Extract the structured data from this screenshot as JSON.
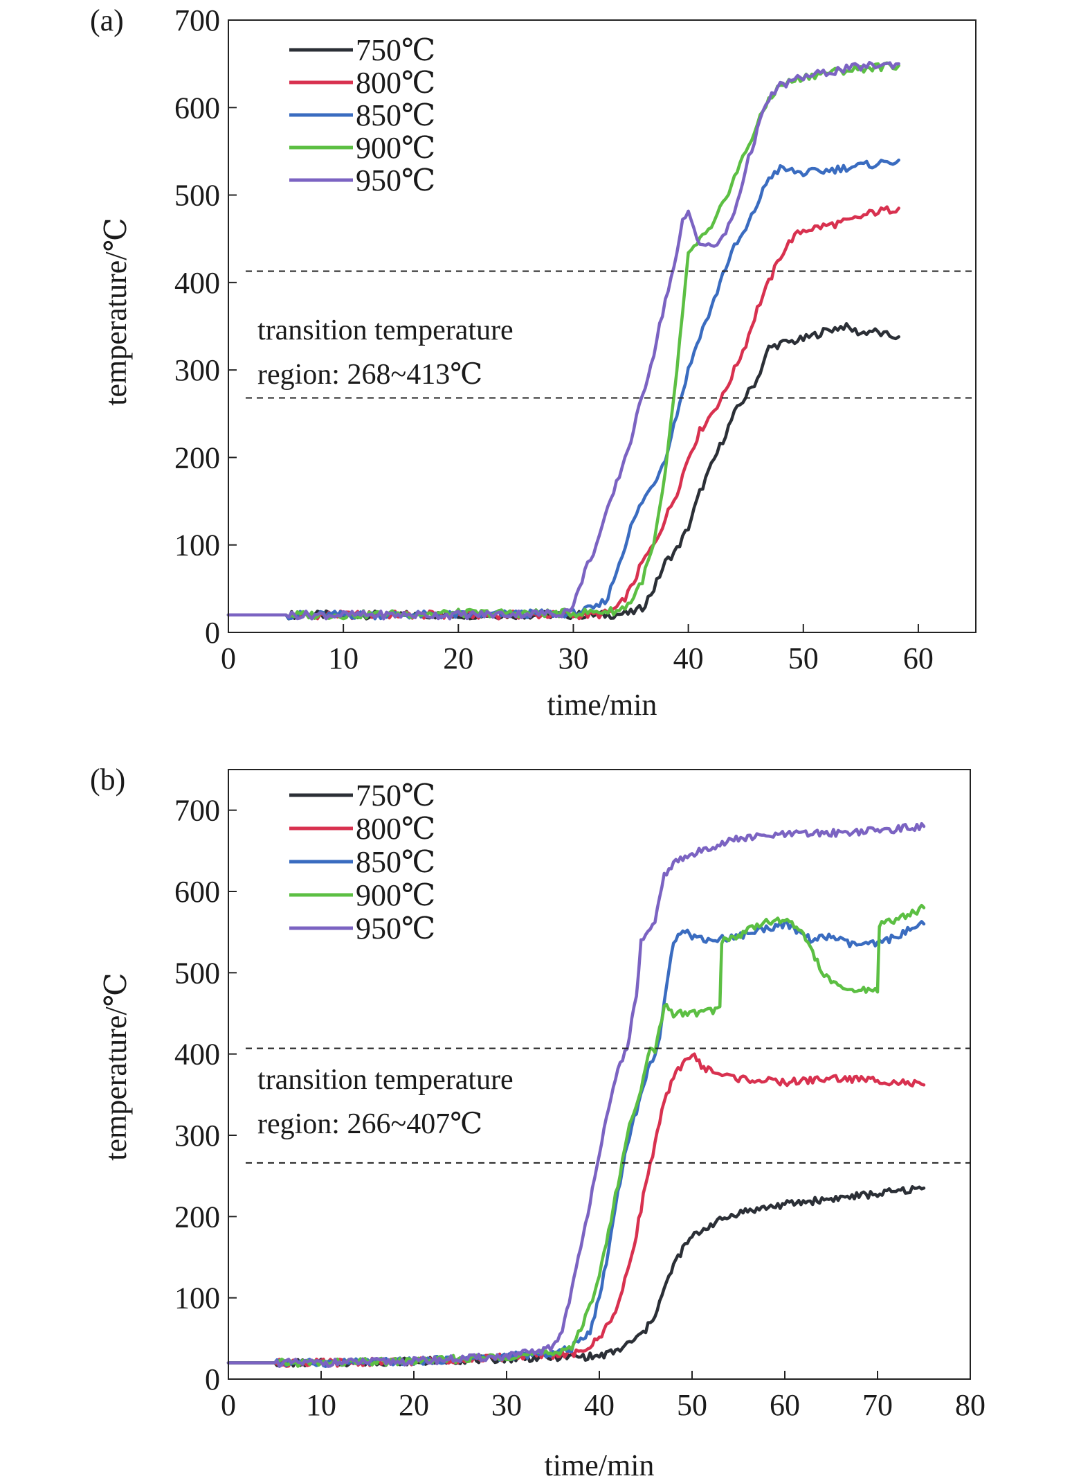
{
  "chart_data": [
    {
      "type": "line",
      "panel_label": "(a)",
      "xlabel": "time/min",
      "ylabel": "temperature/℃",
      "xlim": [
        0,
        65
      ],
      "ylim": [
        0,
        700
      ],
      "xticks": [
        0,
        10,
        20,
        30,
        40,
        50,
        60
      ],
      "yticks": [
        0,
        100,
        200,
        300,
        400,
        500,
        600,
        700
      ],
      "legend_position": "top-left",
      "reference_lines": [
        413,
        268
      ],
      "annotation": [
        "transition temperature",
        "region: 268~413℃"
      ],
      "series": [
        {
          "name": "750℃",
          "color": "#2b2f36",
          "x": [
            0,
            10,
            20,
            30,
            33,
            35,
            36,
            37,
            38,
            39,
            40,
            41,
            42,
            43,
            44,
            45,
            46,
            47,
            48,
            50,
            52,
            53.5,
            55,
            56,
            57,
            58.3
          ],
          "y": [
            20,
            20,
            20,
            20,
            20,
            22,
            28,
            50,
            80,
            95,
            120,
            160,
            190,
            220,
            250,
            270,
            290,
            325,
            330,
            335,
            345,
            350,
            342,
            345,
            340,
            338
          ]
        },
        {
          "name": "800℃",
          "color": "#d8314f",
          "x": [
            0,
            10,
            20,
            30,
            32,
            33,
            34,
            35,
            36,
            37,
            38,
            39,
            40,
            41,
            42,
            43,
            44,
            45,
            46,
            47,
            48,
            49,
            50,
            52,
            54,
            56,
            58.3
          ],
          "y": [
            20,
            20,
            20,
            20,
            20,
            22,
            30,
            50,
            80,
            100,
            130,
            160,
            200,
            230,
            250,
            270,
            300,
            330,
            370,
            400,
            430,
            450,
            460,
            465,
            470,
            480,
            485
          ]
        },
        {
          "name": "850℃",
          "color": "#3a6cc0",
          "x": [
            0,
            10,
            20,
            30,
            32,
            33,
            34,
            35,
            36,
            37,
            38,
            39,
            40,
            41,
            42,
            43,
            44,
            45,
            46,
            47,
            48,
            50,
            52,
            54,
            56,
            58.3
          ],
          "y": [
            20,
            20,
            20,
            22,
            28,
            40,
            80,
            120,
            150,
            170,
            200,
            250,
            300,
            340,
            370,
            410,
            440,
            460,
            490,
            520,
            530,
            525,
            528,
            532,
            535,
            540
          ]
        },
        {
          "name": "900℃",
          "color": "#5cbf43",
          "x": [
            0,
            10,
            20,
            30,
            34,
            35,
            36,
            37,
            38,
            39,
            40,
            41,
            42,
            43,
            44,
            45,
            46,
            47,
            48,
            50,
            52,
            54,
            56,
            58.3
          ],
          "y": [
            20,
            20,
            22,
            22,
            25,
            35,
            60,
            100,
            180,
            300,
            430,
            450,
            460,
            490,
            520,
            550,
            580,
            610,
            625,
            635,
            640,
            643,
            646,
            648
          ]
        },
        {
          "name": "950℃",
          "color": "#7b63c2",
          "x": [
            0,
            10,
            20,
            29,
            30,
            31,
            32,
            33,
            34,
            35,
            36,
            37,
            38,
            39,
            39.5,
            40,
            41,
            42,
            43,
            44,
            45,
            46,
            47,
            48,
            50,
            52,
            54,
            56,
            58.3
          ],
          "y": [
            20,
            20,
            20,
            22,
            30,
            70,
            100,
            140,
            180,
            220,
            270,
            320,
            380,
            430,
            470,
            480,
            445,
            440,
            450,
            480,
            530,
            575,
            610,
            625,
            635,
            640,
            645,
            648,
            650
          ]
        }
      ]
    },
    {
      "type": "line",
      "panel_label": "(b)",
      "xlabel": "time/min",
      "ylabel": "temperature/℃",
      "xlim": [
        0,
        80
      ],
      "ylim": [
        0,
        750
      ],
      "xticks": [
        0,
        10,
        20,
        30,
        40,
        50,
        60,
        70,
        80
      ],
      "yticks": [
        0,
        100,
        200,
        300,
        400,
        500,
        600,
        700
      ],
      "legend_position": "top-left",
      "reference_lines": [
        407,
        266
      ],
      "annotation": [
        "transition temperature",
        "region: 266~407℃"
      ],
      "series": [
        {
          "name": "750℃",
          "color": "#2b2f36",
          "x": [
            0,
            10,
            20,
            30,
            35,
            40,
            42,
            44,
            45,
            46,
            47,
            48,
            49,
            50,
            52,
            55,
            60,
            65,
            70,
            75
          ],
          "y": [
            20,
            20,
            22,
            25,
            27,
            28,
            35,
            50,
            60,
            80,
            110,
            140,
            160,
            175,
            190,
            205,
            215,
            222,
            228,
            235
          ]
        },
        {
          "name": "800℃",
          "color": "#d8314f",
          "x": [
            0,
            10,
            20,
            30,
            35,
            38,
            40,
            42,
            43,
            44,
            45,
            46,
            47,
            48,
            49,
            50,
            51,
            53,
            55,
            60,
            65,
            70,
            75
          ],
          "y": [
            20,
            20,
            22,
            27,
            30,
            32,
            50,
            90,
            130,
            180,
            240,
            290,
            340,
            370,
            390,
            400,
            385,
            375,
            370,
            365,
            370,
            368,
            362
          ]
        },
        {
          "name": "850℃",
          "color": "#3a6cc0",
          "x": [
            0,
            10,
            20,
            30,
            35,
            37,
            39,
            40,
            41,
            42,
            43,
            44,
            45,
            45.5,
            46,
            46.5,
            47,
            47.5,
            48,
            49,
            50,
            52,
            55,
            58,
            60,
            63,
            65,
            67,
            70,
            72,
            75
          ],
          "y": [
            20,
            20,
            22,
            28,
            32,
            38,
            60,
            100,
            160,
            230,
            290,
            330,
            370,
            390,
            400,
            420,
            460,
            500,
            540,
            555,
            545,
            540,
            545,
            555,
            560,
            540,
            545,
            535,
            535,
            545,
            560
          ]
        },
        {
          "name": "900℃",
          "color": "#5cbf43",
          "x": [
            0,
            10,
            20,
            30,
            35,
            37,
            38,
            39,
            40,
            41,
            42,
            43,
            44,
            45,
            45.5,
            46,
            47,
            48,
            50,
            53,
            53.2,
            55,
            57,
            60,
            62,
            64,
            66,
            68,
            70,
            70.2,
            72,
            75
          ],
          "y": [
            20,
            20,
            22,
            28,
            32,
            40,
            60,
            90,
            130,
            180,
            240,
            300,
            340,
            380,
            410,
            400,
            460,
            450,
            450,
            455,
            540,
            545,
            560,
            565,
            550,
            500,
            480,
            478,
            480,
            560,
            565,
            580
          ]
        },
        {
          "name": "950℃",
          "color": "#7b63c2",
          "x": [
            0,
            10,
            20,
            30,
            34,
            35,
            36,
            37,
            38,
            39,
            40,
            41,
            42,
            43,
            44,
            44.5,
            45,
            46,
            47,
            48,
            49,
            50,
            52,
            55,
            60,
            65,
            70,
            75
          ],
          "y": [
            20,
            20,
            22,
            28,
            35,
            40,
            60,
            110,
            160,
            220,
            280,
            330,
            380,
            410,
            470,
            540,
            545,
            560,
            620,
            635,
            640,
            645,
            655,
            665,
            670,
            672,
            675,
            680
          ]
        }
      ]
    }
  ]
}
